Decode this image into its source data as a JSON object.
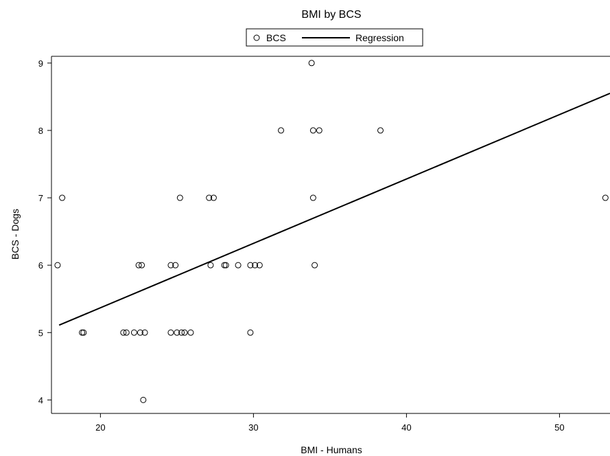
{
  "chart_data": {
    "type": "scatter",
    "title": "BMI by BCS",
    "xlabel": "BMI - Humans",
    "ylabel": "BCS - Dogs",
    "xlim": [
      16.8,
      53.3
    ],
    "ylim": [
      3.8,
      9.1
    ],
    "xticks": [
      20,
      30,
      40,
      50
    ],
    "yticks": [
      4,
      5,
      6,
      7,
      8,
      9
    ],
    "grid": false,
    "legend_position": "top-center",
    "legend": [
      {
        "label": "BCS",
        "marker": "circle-open"
      },
      {
        "label": "Regression",
        "marker": "line"
      }
    ],
    "series": [
      {
        "name": "BCS",
        "points": [
          [
            17.5,
            7
          ],
          [
            17.2,
            6
          ],
          [
            18.8,
            5
          ],
          [
            18.9,
            5
          ],
          [
            21.5,
            5
          ],
          [
            21.7,
            5
          ],
          [
            22.2,
            5
          ],
          [
            22.6,
            5
          ],
          [
            22.9,
            5
          ],
          [
            22.5,
            6
          ],
          [
            22.7,
            6
          ],
          [
            22.8,
            4
          ],
          [
            24.6,
            5
          ],
          [
            25.0,
            5
          ],
          [
            25.3,
            5
          ],
          [
            25.5,
            5
          ],
          [
            25.9,
            5
          ],
          [
            24.6,
            6
          ],
          [
            24.9,
            6
          ],
          [
            25.2,
            7
          ],
          [
            27.1,
            7
          ],
          [
            27.4,
            7
          ],
          [
            27.2,
            6
          ],
          [
            28.1,
            6
          ],
          [
            28.2,
            6
          ],
          [
            29.0,
            6
          ],
          [
            29.8,
            6
          ],
          [
            30.1,
            6
          ],
          [
            30.4,
            6
          ],
          [
            29.8,
            5
          ],
          [
            31.8,
            8
          ],
          [
            33.8,
            9
          ],
          [
            33.9,
            8
          ],
          [
            34.3,
            8
          ],
          [
            33.9,
            7
          ],
          [
            34.0,
            6
          ],
          [
            38.3,
            8
          ],
          [
            53.0,
            7
          ]
        ]
      },
      {
        "name": "Regression",
        "line": [
          [
            17.3,
            5.11
          ],
          [
            53.3,
            8.55
          ]
        ]
      }
    ]
  },
  "style": {
    "line_color": "#000000",
    "marker_color": "#000000",
    "background": "#ffffff"
  }
}
